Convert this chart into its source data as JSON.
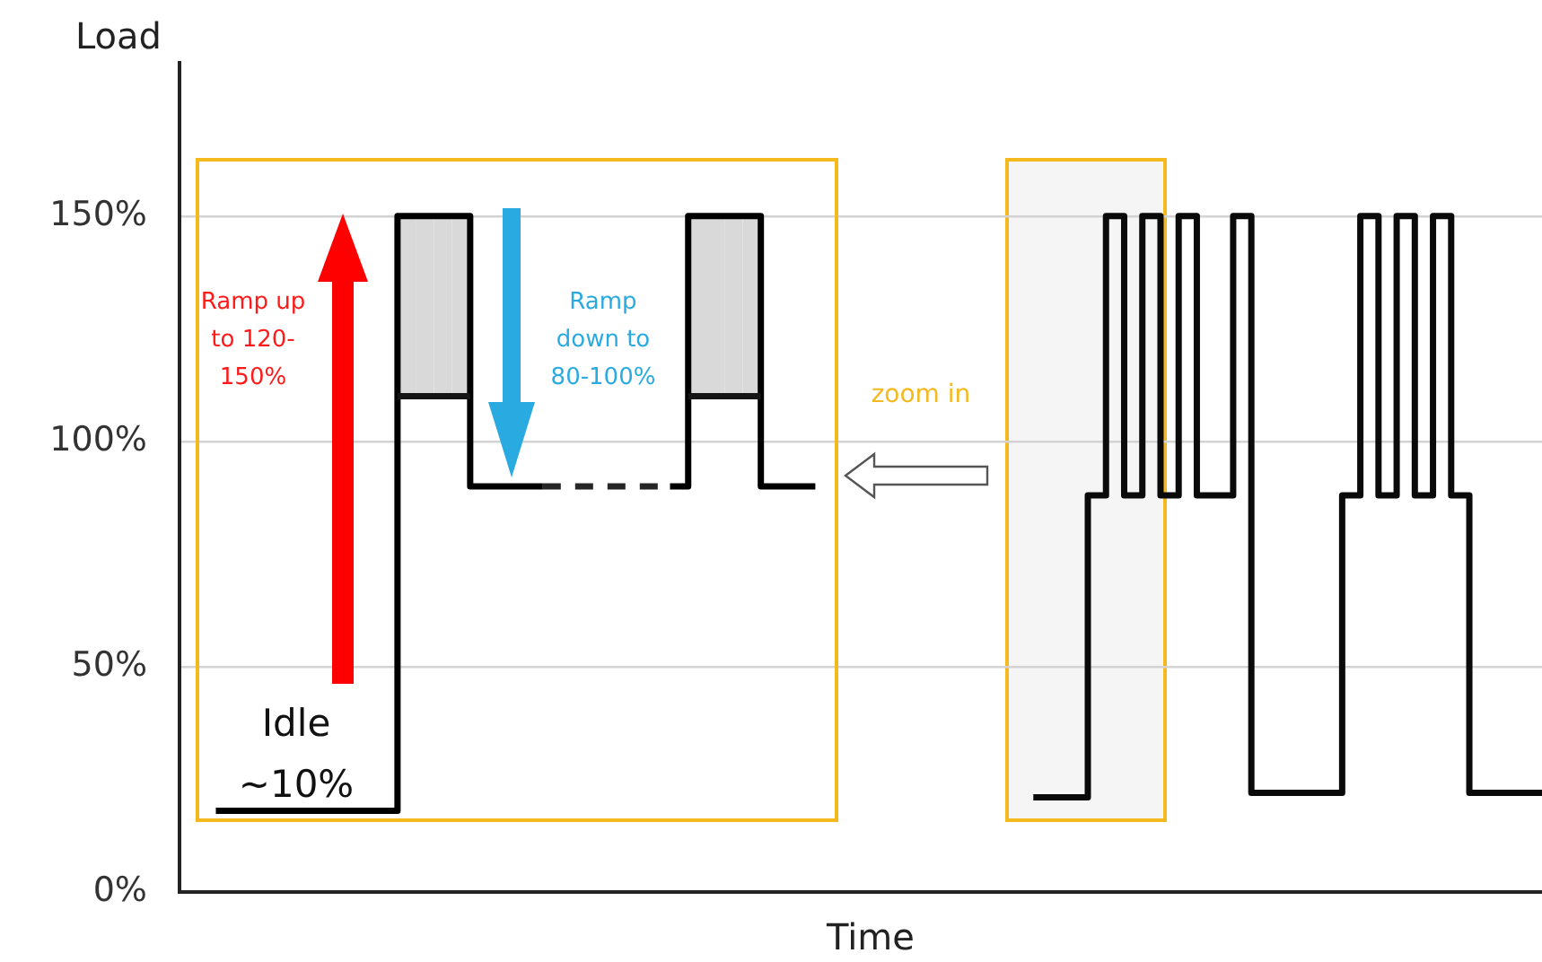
{
  "chart_data": {
    "type": "step",
    "xlabel": "Time",
    "ylabel": "Load",
    "categories": [
      null,
      null,
      null,
      null,
      null,
      null,
      null,
      null,
      null,
      null,
      null,
      null,
      null,
      null,
      null,
      null,
      null,
      null,
      null,
      null,
      null,
      null,
      null,
      null,
      null,
      null,
      null,
      null,
      null,
      null,
      null,
      null,
      null,
      null,
      null,
      null,
      null,
      null,
      null,
      null,
      null,
      null,
      null,
      null,
      null,
      null,
      null,
      null,
      null,
      null,
      null,
      null,
      null,
      null,
      null,
      null,
      null,
      null,
      null,
      null,
      null,
      null,
      null,
      null,
      null,
      null,
      null,
      null,
      null,
      null,
      null,
      null,
      null,
      null,
      null,
      null
    ],
    "series": [
      {
        "color": "#000000",
        "values": [
          null,
          null,
          18,
          18,
          18,
          18,
          18,
          18,
          18,
          18,
          18,
          18,
          150,
          150,
          150,
          150,
          90,
          90,
          90,
          90,
          90,
          null,
          null,
          null,
          null,
          null,
          null,
          90,
          150,
          150,
          150,
          150,
          90,
          90,
          90,
          90,
          null,
          null,
          null,
          null,
          null,
          null,
          null,
          null,
          null,
          null,
          null,
          null,
          null,
          null,
          null,
          null,
          null,
          null,
          null,
          null,
          null,
          null,
          null,
          null,
          null,
          null,
          null,
          null,
          null,
          null,
          null,
          null,
          null,
          null,
          null,
          null,
          null,
          null,
          null,
          null
        ]
      },
      {
        "color": "#141414",
        "values": [
          null,
          null,
          null,
          null,
          null,
          null,
          null,
          null,
          null,
          null,
          null,
          null,
          110,
          110,
          110,
          110,
          110,
          null,
          null,
          null,
          null,
          null,
          null,
          null,
          null,
          null,
          null,
          null,
          110,
          110,
          110,
          110,
          110,
          null,
          null,
          null,
          null,
          null,
          null,
          null,
          null,
          null,
          null,
          null,
          null,
          null,
          null,
          null,
          null,
          null,
          null,
          null,
          null,
          null,
          null,
          null,
          null,
          null,
          null,
          null,
          null,
          null,
          null,
          null,
          null,
          null,
          null,
          null,
          null,
          null,
          null,
          null,
          null,
          null,
          null,
          null
        ],
        "lower": [
          null,
          null,
          null,
          null,
          null,
          null,
          null,
          null,
          null,
          null,
          null,
          null,
          110,
          110,
          110,
          110,
          110,
          null,
          null,
          null,
          null,
          null,
          null,
          null,
          null,
          null,
          null,
          null,
          110,
          110,
          110,
          110,
          110,
          null,
          null,
          null,
          null,
          null,
          null,
          null,
          null,
          null,
          null,
          null,
          null,
          null,
          null,
          null,
          null,
          null,
          null,
          null,
          null,
          null,
          null,
          null,
          null,
          null,
          null,
          null,
          null,
          null,
          null,
          null,
          null,
          null,
          null,
          null,
          null,
          null,
          null,
          null,
          null,
          null,
          null,
          null
        ],
        "upper": [
          null,
          null,
          null,
          null,
          null,
          null,
          null,
          null,
          null,
          null,
          null,
          null,
          150,
          150,
          150,
          150,
          150,
          null,
          null,
          null,
          null,
          null,
          null,
          null,
          null,
          null,
          null,
          null,
          150,
          150,
          150,
          150,
          150,
          null,
          null,
          null,
          null,
          null,
          null,
          null,
          null,
          null,
          null,
          null,
          null,
          null,
          null,
          null,
          null,
          null,
          null,
          null,
          null,
          null,
          null,
          null,
          null,
          null,
          null,
          null,
          null,
          null,
          null,
          null,
          null,
          null,
          null,
          null,
          null,
          null,
          null,
          null,
          null,
          null,
          null,
          null
        ]
      },
      {
        "color": "#262626",
        "line_style": "dashed",
        "values": [
          null,
          null,
          null,
          null,
          null,
          null,
          null,
          null,
          null,
          null,
          null,
          null,
          null,
          null,
          null,
          null,
          null,
          null,
          null,
          null,
          90,
          90,
          90,
          90,
          90,
          90,
          90,
          90,
          null,
          null,
          null,
          null,
          null,
          null,
          null,
          null,
          null,
          null,
          null,
          null,
          null,
          null,
          null,
          null,
          null,
          null,
          null,
          null,
          null,
          null,
          null,
          null,
          null,
          null,
          null,
          null,
          null,
          null,
          null,
          null,
          null,
          null,
          null,
          null,
          null,
          null,
          null,
          null,
          null,
          null,
          null,
          null,
          null,
          null,
          null,
          null
        ]
      },
      {
        "color": "#0a0a0a",
        "values": [
          null,
          null,
          null,
          null,
          null,
          null,
          null,
          null,
          null,
          null,
          null,
          null,
          null,
          null,
          null,
          null,
          null,
          null,
          null,
          null,
          null,
          null,
          null,
          null,
          null,
          null,
          null,
          null,
          null,
          null,
          null,
          null,
          null,
          null,
          null,
          null,
          null,
          null,
          null,
          null,
          null,
          null,
          null,
          null,
          null,
          null,
          null,
          21,
          21,
          21,
          88,
          150,
          88,
          150,
          88,
          150,
          88,
          88,
          150,
          22,
          22,
          22,
          22,
          22,
          88,
          150,
          88,
          150,
          88,
          150,
          88,
          22,
          22,
          22,
          22,
          22
        ]
      }
    ],
    "ylim": [
      0,
      184
    ],
    "yticks": [
      {
        "value": 0,
        "label": "0%"
      },
      {
        "value": 50,
        "label": "50%"
      },
      {
        "value": 100,
        "label": "100%"
      },
      {
        "value": 150,
        "label": "150%"
      }
    ],
    "grid": "y",
    "legend": false,
    "tick_labels": "y",
    "annotations": [
      "Ramp up to 120-150%",
      "Ramp down to 80-100%",
      "Idle ~10%",
      "zoom in"
    ]
  }
}
